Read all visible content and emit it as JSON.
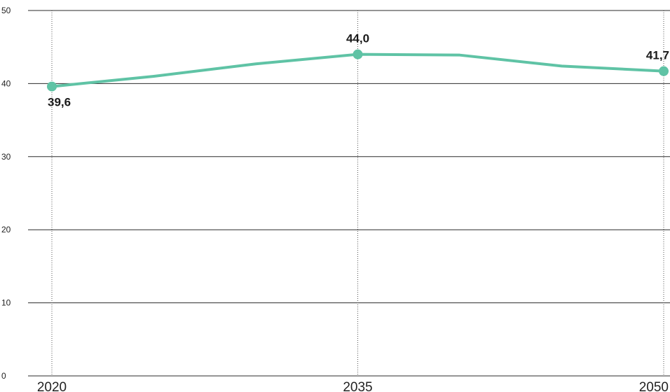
{
  "chart_data": {
    "type": "line",
    "title": "",
    "xlabel": "",
    "ylabel": "",
    "ylim": [
      0,
      50
    ],
    "y_ticks": [
      0,
      10,
      20,
      30,
      40,
      50
    ],
    "x_ticks": [
      2020,
      2035,
      2050
    ],
    "xlim": [
      2020,
      2050
    ],
    "grid": "horizontal gridlines, dotted vertical lines at labeled years",
    "series": [
      {
        "color": "#5fc3a5",
        "x": [
          2020,
          2025,
          2030,
          2035,
          2040,
          2045,
          2050
        ],
        "values": [
          39.6,
          41.0,
          42.7,
          44.0,
          43.9,
          42.4,
          41.7
        ]
      }
    ],
    "data_labels": [
      {
        "x": 2020,
        "y": 39.6,
        "text": "39,6",
        "position": "below"
      },
      {
        "x": 2035,
        "y": 44.0,
        "text": "44,0",
        "position": "above"
      },
      {
        "x": 2050,
        "y": 41.7,
        "text": "41,7",
        "position": "above"
      }
    ]
  }
}
